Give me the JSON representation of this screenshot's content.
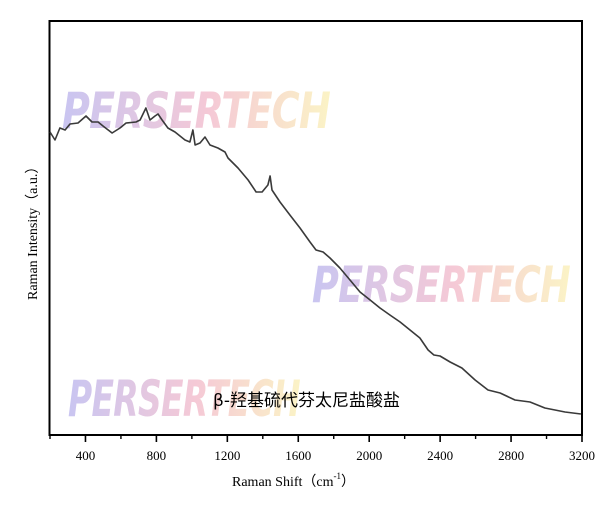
{
  "chart_data": {
    "type": "line",
    "title": "",
    "xlabel": "Raman Shift（cm",
    "xlabel_sup": "-1",
    "xlabel_close": "）",
    "ylabel": "Raman Intensity（a.u.）",
    "xlim": [
      200,
      3200
    ],
    "ylim": [
      0,
      414
    ],
    "grid": false,
    "legend": null,
    "x_ticks_major": [
      400,
      800,
      1200,
      1600,
      2000,
      2400,
      2800,
      3200
    ],
    "x_ticks_minor": [
      200,
      600,
      1000,
      1400,
      1800,
      2200,
      2600,
      3000
    ],
    "y_ticks": [],
    "annotation": "β-羟基硫代芬太尼盐酸盐",
    "watermark": "PERSERTECH",
    "series": [
      {
        "name": "β-羟基硫代芬太尼盐酸盐",
        "color": "#3a3a3a",
        "x": [
          200,
          228,
          256,
          285,
          313,
          358,
          403,
          437,
          471,
          499,
          550,
          595,
          629,
          685,
          708,
          741,
          764,
          792,
          809,
          832,
          865,
          905,
          961,
          989,
          1006,
          1018,
          1046,
          1074,
          1102,
          1147,
          1187,
          1204,
          1260,
          1317,
          1362,
          1396,
          1429,
          1441,
          1452,
          1497,
          1553,
          1610,
          1666,
          1700,
          1740,
          1779,
          1835,
          1892,
          1948,
          2005,
          2061,
          2117,
          2174,
          2230,
          2286,
          2332,
          2365,
          2399,
          2456,
          2523,
          2597,
          2670,
          2738,
          2822,
          2907,
          2991,
          3048,
          3104,
          3194
        ],
        "y": [
          303,
          295,
          307,
          305,
          311,
          312,
          319,
          313,
          313,
          309,
          302,
          307,
          312,
          313,
          315,
          327,
          315,
          319,
          321,
          315,
          307,
          303,
          295,
          293,
          305,
          290,
          292,
          298,
          290,
          287,
          283,
          277,
          267,
          255,
          243,
          243,
          250,
          259,
          245,
          233,
          220,
          207,
          193,
          185,
          183,
          177,
          167,
          155,
          143,
          135,
          127,
          120,
          113,
          105,
          97,
          85,
          80,
          79,
          73,
          67,
          55,
          45,
          42,
          35,
          33,
          27,
          25,
          23,
          21
        ]
      }
    ]
  },
  "colors": {
    "frame": "#000000",
    "trace": "#3a3a3a",
    "watermark_start": "#c9c5f1",
    "watermark_mid": "#f5c9d6",
    "watermark_end": "#fbf3c6"
  }
}
